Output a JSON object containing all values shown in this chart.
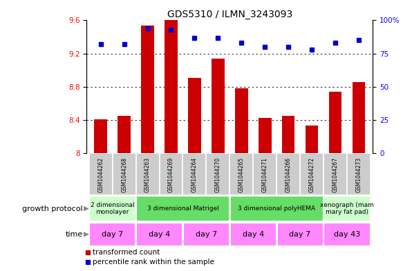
{
  "title": "GDS5310 / ILMN_3243093",
  "samples": [
    "GSM1044262",
    "GSM1044268",
    "GSM1044263",
    "GSM1044269",
    "GSM1044264",
    "GSM1044270",
    "GSM1044265",
    "GSM1044271",
    "GSM1044266",
    "GSM1044272",
    "GSM1044267",
    "GSM1044273"
  ],
  "bar_values": [
    8.41,
    8.45,
    9.54,
    9.6,
    8.91,
    9.14,
    8.78,
    8.42,
    8.45,
    8.33,
    8.74,
    8.86
  ],
  "dot_values": [
    82,
    82,
    94,
    93,
    87,
    87,
    83,
    80,
    80,
    78,
    83,
    85
  ],
  "bar_color": "#cc0000",
  "dot_color": "#0000cc",
  "ylim_left": [
    8.0,
    9.6
  ],
  "ylim_right": [
    0,
    100
  ],
  "yticks_left": [
    8.0,
    8.4,
    8.8,
    9.2,
    9.6
  ],
  "yticks_right": [
    0,
    25,
    50,
    75,
    100
  ],
  "ytick_labels_left": [
    "8",
    "8.4",
    "8.8",
    "9.2",
    "9.6"
  ],
  "ytick_labels_right": [
    "0",
    "25",
    "50",
    "75",
    "100%"
  ],
  "grid_values": [
    8.4,
    8.8,
    9.2
  ],
  "growth_protocol_groups": [
    {
      "label": "2 dimensional\nmonolayer",
      "start": 0,
      "end": 2,
      "color": "#ccffcc"
    },
    {
      "label": "3 dimensional Matrigel",
      "start": 2,
      "end": 6,
      "color": "#66dd66"
    },
    {
      "label": "3 dimensional polyHEMA",
      "start": 6,
      "end": 10,
      "color": "#66dd66"
    },
    {
      "label": "xenograph (mam\nmary fat pad)",
      "start": 10,
      "end": 12,
      "color": "#ccffcc"
    }
  ],
  "time_groups": [
    {
      "label": "day 7",
      "start": 0,
      "end": 2
    },
    {
      "label": "day 4",
      "start": 2,
      "end": 4
    },
    {
      "label": "day 7",
      "start": 4,
      "end": 6
    },
    {
      "label": "day 4",
      "start": 6,
      "end": 8
    },
    {
      "label": "day 7",
      "start": 8,
      "end": 10
    },
    {
      "label": "day 43",
      "start": 10,
      "end": 12
    }
  ],
  "time_color": "#ff88ff",
  "left_label_protocol": "growth protocol",
  "left_label_time": "time",
  "legend_items": [
    {
      "color": "#cc0000",
      "label": "transformed count"
    },
    {
      "color": "#0000cc",
      "label": "percentile rank within the sample"
    }
  ],
  "bar_width": 0.55,
  "sample_bg_color": "#cccccc",
  "border_color": "#888888"
}
